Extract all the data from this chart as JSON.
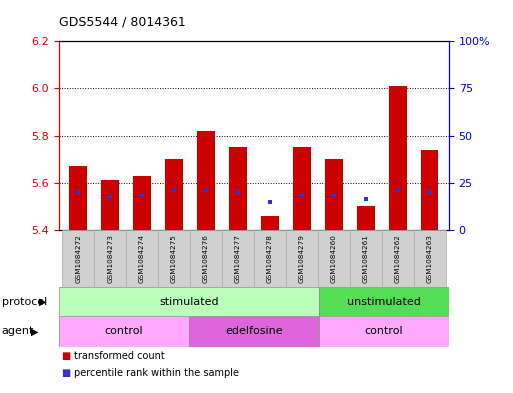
{
  "title": "GDS5544 / 8014361",
  "samples": [
    "GSM1084272",
    "GSM1084273",
    "GSM1084274",
    "GSM1084275",
    "GSM1084276",
    "GSM1084277",
    "GSM1084278",
    "GSM1084279",
    "GSM1084260",
    "GSM1084261",
    "GSM1084262",
    "GSM1084263"
  ],
  "bar_values": [
    5.67,
    5.61,
    5.63,
    5.7,
    5.82,
    5.75,
    5.46,
    5.75,
    5.7,
    5.5,
    6.01,
    5.74
  ],
  "bar_bottom": 5.4,
  "percentile_values": [
    5.56,
    5.54,
    5.55,
    5.57,
    5.57,
    5.56,
    5.52,
    5.55,
    5.55,
    5.53,
    5.57,
    5.56
  ],
  "ylim_left": [
    5.4,
    6.2
  ],
  "ylim_right": [
    0,
    100
  ],
  "yticks_left": [
    5.4,
    5.6,
    5.8,
    6.0,
    6.2
  ],
  "yticks_right": [
    0,
    25,
    50,
    75,
    100
  ],
  "ytick_labels_right": [
    "0",
    "25",
    "50",
    "75",
    "100%"
  ],
  "bar_color": "#cc0000",
  "percentile_color": "#3333cc",
  "grid_color": "#000000",
  "protocol_segments": [
    {
      "label": "stimulated",
      "start": 0,
      "end": 8,
      "color": "#bbffbb"
    },
    {
      "label": "unstimulated",
      "start": 8,
      "end": 12,
      "color": "#55dd55"
    }
  ],
  "agent_segments": [
    {
      "label": "control",
      "start": 0,
      "end": 4,
      "color": "#ffaaff"
    },
    {
      "label": "edelfosine",
      "start": 4,
      "end": 8,
      "color": "#dd66dd"
    },
    {
      "label": "control",
      "start": 8,
      "end": 12,
      "color": "#ffaaff"
    }
  ],
  "protocol_row_label": "protocol",
  "agent_row_label": "agent",
  "legend_items": [
    "transformed count",
    "percentile rank within the sample"
  ],
  "tick_color_left": "#cc0000",
  "tick_color_right": "#0000cc",
  "bar_width": 0.55
}
